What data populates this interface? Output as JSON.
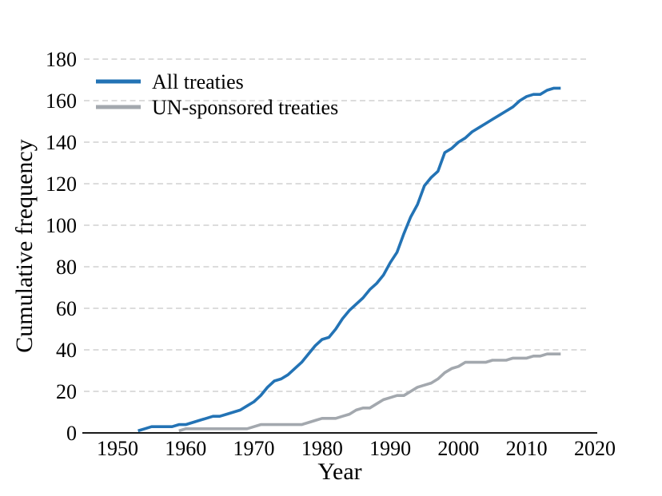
{
  "chart_data": {
    "type": "line",
    "title": "",
    "xlabel": "Year",
    "ylabel": "Cumulative frequency",
    "xlim": [
      1945,
      2021
    ],
    "ylim": [
      0,
      180
    ],
    "x_ticks": [
      1950,
      1960,
      1970,
      1980,
      1990,
      2000,
      2010,
      2020
    ],
    "y_ticks": [
      0,
      20,
      40,
      60,
      80,
      100,
      120,
      140,
      160,
      180
    ],
    "grid": "horizontal-dashed",
    "grid_color": "#c8c8c8",
    "axis_color": "#1a1a1a",
    "legend_position": "top-left",
    "series": [
      {
        "name": "All treaties",
        "color": "#2373b5",
        "x": [
          1953,
          1954,
          1955,
          1956,
          1957,
          1958,
          1959,
          1960,
          1961,
          1962,
          1963,
          1964,
          1965,
          1966,
          1967,
          1968,
          1969,
          1970,
          1971,
          1972,
          1973,
          1974,
          1975,
          1976,
          1977,
          1978,
          1979,
          1980,
          1981,
          1982,
          1983,
          1984,
          1985,
          1986,
          1987,
          1988,
          1989,
          1990,
          1991,
          1992,
          1993,
          1994,
          1995,
          1996,
          1997,
          1998,
          1999,
          2000,
          2001,
          2002,
          2003,
          2004,
          2005,
          2006,
          2007,
          2008,
          2009,
          2010,
          2011,
          2012,
          2013,
          2014,
          2015
        ],
        "y": [
          1,
          2,
          3,
          3,
          3,
          3,
          4,
          4,
          5,
          6,
          7,
          8,
          8,
          9,
          10,
          11,
          13,
          15,
          18,
          22,
          25,
          26,
          28,
          31,
          34,
          38,
          42,
          45,
          46,
          50,
          55,
          59,
          62,
          65,
          69,
          72,
          76,
          82,
          87,
          96,
          104,
          110,
          119,
          123,
          126,
          135,
          137,
          140,
          142,
          145,
          147,
          149,
          151,
          153,
          155,
          157,
          160,
          162,
          163,
          163,
          165,
          166,
          166
        ]
      },
      {
        "name": "UN-sponsored treaties",
        "color": "#a3a8ae",
        "x": [
          1959,
          1960,
          1961,
          1962,
          1963,
          1964,
          1965,
          1966,
          1967,
          1968,
          1969,
          1970,
          1971,
          1972,
          1973,
          1974,
          1975,
          1976,
          1977,
          1978,
          1979,
          1980,
          1981,
          1982,
          1983,
          1984,
          1985,
          1986,
          1987,
          1988,
          1989,
          1990,
          1991,
          1992,
          1993,
          1994,
          1995,
          1996,
          1997,
          1998,
          1999,
          2000,
          2001,
          2002,
          2003,
          2004,
          2005,
          2006,
          2007,
          2008,
          2009,
          2010,
          2011,
          2012,
          2013,
          2014,
          2015
        ],
        "y": [
          1,
          2,
          2,
          2,
          2,
          2,
          2,
          2,
          2,
          2,
          2,
          3,
          4,
          4,
          4,
          4,
          4,
          4,
          4,
          5,
          6,
          7,
          7,
          7,
          8,
          9,
          11,
          12,
          12,
          14,
          16,
          17,
          18,
          18,
          20,
          22,
          23,
          24,
          26,
          29,
          31,
          32,
          34,
          34,
          34,
          34,
          35,
          35,
          35,
          36,
          36,
          36,
          37,
          37,
          38,
          38,
          38
        ]
      }
    ]
  }
}
